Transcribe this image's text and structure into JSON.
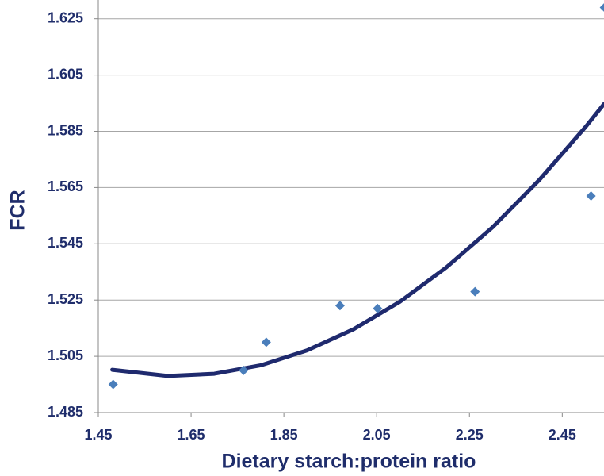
{
  "chart_data": {
    "type": "scatter",
    "xlabel": "Dietary starch:protein ratio",
    "ylabel": "FCR",
    "xlim": [
      1.45,
      2.54
    ],
    "xticks": [
      1.45,
      1.65,
      1.85,
      2.05,
      2.25,
      2.45
    ],
    "ylim": [
      1.485,
      1.632
    ],
    "yticks": [
      1.485,
      1.505,
      1.525,
      1.545,
      1.565,
      1.585,
      1.605,
      1.625
    ],
    "grid": true,
    "series": [
      {
        "type": "scatter",
        "color": "#4a7ebb",
        "x": [
          1.482,
          1.763,
          1.812,
          1.971,
          2.052,
          2.262,
          2.512,
          2.541
        ],
        "values": [
          1.495,
          1.5,
          1.51,
          1.523,
          1.522,
          1.528,
          1.562,
          1.629
        ]
      },
      {
        "type": "line",
        "color": "#1f2a6e",
        "x": [
          1.48,
          1.6,
          1.7,
          1.8,
          1.9,
          2.0,
          2.1,
          2.2,
          2.3,
          2.4,
          2.5,
          2.54
        ],
        "values": [
          1.5002,
          1.498,
          1.4988,
          1.5018,
          1.5071,
          1.5146,
          1.5244,
          1.5366,
          1.5509,
          1.5676,
          1.5865,
          1.5947
        ]
      }
    ]
  }
}
